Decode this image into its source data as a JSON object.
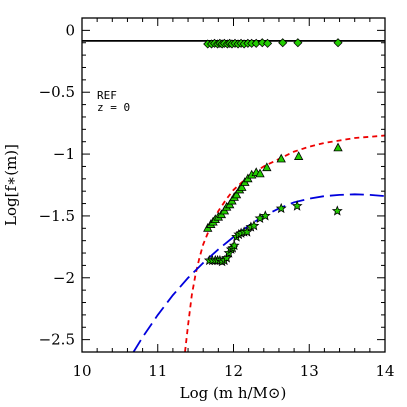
{
  "chart_data": {
    "type": "scatter",
    "xlabel": "Log (m h/M⊙)",
    "ylabel": "Log[f∗(m)]",
    "xlim": [
      10,
      14
    ],
    "ylim": [
      -2.6,
      0.1
    ],
    "x_ticks": [
      10,
      11,
      12,
      13,
      14
    ],
    "y_ticks": [
      0,
      -0.5,
      -1,
      -1.5,
      -2,
      -2.5
    ],
    "x_tick_labels": [
      "10",
      "11",
      "12",
      "13",
      "14"
    ],
    "y_tick_labels": [
      "0",
      "−0.5",
      "−1",
      "−1.5",
      "−2",
      "−2.5"
    ],
    "annotations": [
      "REF",
      "z = 0"
    ],
    "grid": false,
    "colors": {
      "marker_fill": "#22cc00",
      "red_curve": "#ee0000",
      "blue_curve": "#0000dd",
      "axis": "#000000"
    },
    "reference_line": {
      "y": -0.085,
      "color": "#000000"
    },
    "series": [
      {
        "marker": "diamond",
        "points": [
          [
            11.66,
            -0.11
          ],
          [
            11.71,
            -0.11
          ],
          [
            11.75,
            -0.105
          ],
          [
            11.79,
            -0.11
          ],
          [
            11.82,
            -0.105
          ],
          [
            11.85,
            -0.11
          ],
          [
            11.88,
            -0.105
          ],
          [
            11.92,
            -0.11
          ],
          [
            11.95,
            -0.105
          ],
          [
            11.98,
            -0.11
          ],
          [
            12.02,
            -0.105
          ],
          [
            12.06,
            -0.11
          ],
          [
            12.1,
            -0.105
          ],
          [
            12.14,
            -0.11
          ],
          [
            12.19,
            -0.105
          ],
          [
            12.24,
            -0.105
          ],
          [
            12.3,
            -0.105
          ],
          [
            12.38,
            -0.1
          ],
          [
            12.45,
            -0.105
          ],
          [
            12.65,
            -0.1
          ],
          [
            12.85,
            -0.1
          ],
          [
            13.38,
            -0.1
          ]
        ]
      },
      {
        "marker": "triangle",
        "points": [
          [
            11.66,
            -1.6
          ],
          [
            11.7,
            -1.57
          ],
          [
            11.73,
            -1.55
          ],
          [
            11.76,
            -1.53
          ],
          [
            11.8,
            -1.51
          ],
          [
            11.84,
            -1.49
          ],
          [
            11.88,
            -1.46
          ],
          [
            11.91,
            -1.43
          ],
          [
            11.95,
            -1.41
          ],
          [
            11.98,
            -1.38
          ],
          [
            12.01,
            -1.35
          ],
          [
            12.04,
            -1.33
          ],
          [
            12.08,
            -1.29
          ],
          [
            12.11,
            -1.27
          ],
          [
            12.15,
            -1.23
          ],
          [
            12.19,
            -1.2
          ],
          [
            12.24,
            -1.17
          ],
          [
            12.3,
            -1.15
          ],
          [
            12.35,
            -1.16
          ],
          [
            12.44,
            -1.11
          ],
          [
            12.63,
            -1.04
          ],
          [
            12.86,
            -1.02
          ],
          [
            13.38,
            -0.95
          ]
        ]
      },
      {
        "marker": "star",
        "points": [
          [
            11.68,
            -1.86
          ],
          [
            11.72,
            -1.86
          ],
          [
            11.76,
            -1.86
          ],
          [
            11.79,
            -1.86
          ],
          [
            11.82,
            -1.86
          ],
          [
            11.85,
            -1.87
          ],
          [
            11.88,
            -1.86
          ],
          [
            11.91,
            -1.84
          ],
          [
            11.94,
            -1.8
          ],
          [
            11.97,
            -1.77
          ],
          [
            11.99,
            -1.76
          ],
          [
            12.01,
            -1.74
          ],
          [
            12.04,
            -1.67
          ],
          [
            12.07,
            -1.65
          ],
          [
            12.1,
            -1.64
          ],
          [
            12.14,
            -1.63
          ],
          [
            12.18,
            -1.63
          ],
          [
            12.23,
            -1.59
          ],
          [
            12.27,
            -1.58
          ],
          [
            12.35,
            -1.52
          ],
          [
            12.42,
            -1.5
          ],
          [
            12.63,
            -1.44
          ],
          [
            12.84,
            -1.42
          ],
          [
            13.37,
            -1.46
          ]
        ]
      }
    ],
    "curves": [
      {
        "style": "dashed",
        "color": "#ee0000",
        "points": [
          [
            11.36,
            -2.6
          ],
          [
            11.4,
            -2.38
          ],
          [
            11.45,
            -2.14
          ],
          [
            11.5,
            -1.97
          ],
          [
            11.55,
            -1.84
          ],
          [
            11.6,
            -1.73
          ],
          [
            11.7,
            -1.58
          ],
          [
            11.8,
            -1.46
          ],
          [
            11.9,
            -1.37
          ],
          [
            12.0,
            -1.29
          ],
          [
            12.2,
            -1.18
          ],
          [
            12.4,
            -1.1
          ],
          [
            12.6,
            -1.04
          ],
          [
            12.8,
            -0.98
          ],
          [
            13.0,
            -0.94
          ],
          [
            13.2,
            -0.91
          ],
          [
            13.4,
            -0.89
          ],
          [
            13.6,
            -0.87
          ],
          [
            13.8,
            -0.86
          ],
          [
            14.0,
            -0.85
          ]
        ]
      },
      {
        "style": "dashed",
        "color": "#0000dd",
        "points": [
          [
            10.68,
            -2.6
          ],
          [
            10.8,
            -2.48
          ],
          [
            11.0,
            -2.3
          ],
          [
            11.2,
            -2.14
          ],
          [
            11.4,
            -2.0
          ],
          [
            11.6,
            -1.88
          ],
          [
            11.8,
            -1.77
          ],
          [
            12.0,
            -1.67
          ],
          [
            12.2,
            -1.58
          ],
          [
            12.4,
            -1.5
          ],
          [
            12.6,
            -1.44
          ],
          [
            12.8,
            -1.39
          ],
          [
            13.0,
            -1.36
          ],
          [
            13.2,
            -1.34
          ],
          [
            13.4,
            -1.33
          ],
          [
            13.6,
            -1.325
          ],
          [
            13.8,
            -1.33
          ],
          [
            14.0,
            -1.34
          ]
        ]
      }
    ]
  }
}
